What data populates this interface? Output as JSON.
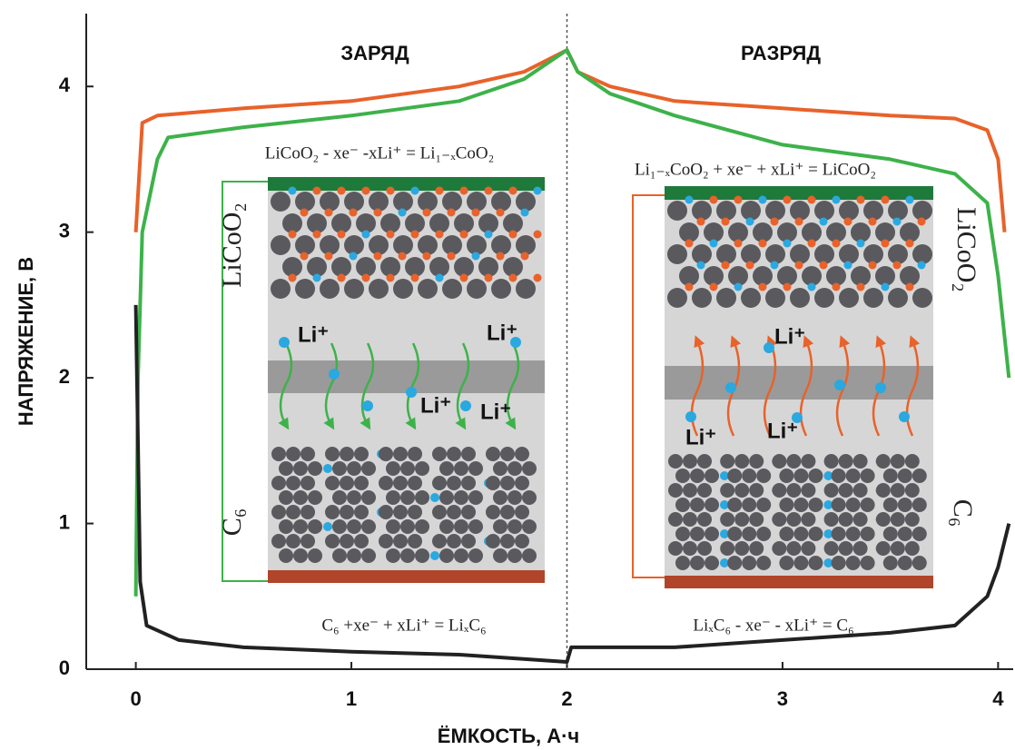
{
  "chart_data": {
    "type": "line",
    "xlabel": "ЁМКОСТЬ, А·ч",
    "ylabel": "НАПРЯЖЕНИЕ, В",
    "charge_label": "ЗАРЯД",
    "discharge_label": "РАЗРЯД",
    "xlim": [
      -0.23,
      4.07
    ],
    "ylim": [
      0,
      4.5
    ],
    "xticks": [
      0,
      1,
      2,
      3,
      4
    ],
    "yticks": [
      0,
      1,
      2,
      3,
      4
    ],
    "series": [
      {
        "color": "#e8622a",
        "x": [
          0,
          0.03,
          0.1,
          0.5,
          1,
          1.5,
          1.8,
          2.0,
          2.05,
          2.2,
          2.5,
          3,
          3.5,
          3.8,
          3.95,
          4.0,
          4.03
        ],
        "values": [
          3.0,
          3.75,
          3.8,
          3.85,
          3.9,
          4.0,
          4.1,
          4.25,
          4.1,
          4.0,
          3.9,
          3.85,
          3.8,
          3.78,
          3.7,
          3.5,
          3.0
        ]
      },
      {
        "color": "#3db24a",
        "x": [
          0,
          0.01,
          0.03,
          0.1,
          0.15,
          0.5,
          1,
          1.5,
          1.8,
          2.0,
          2.05,
          2.2,
          2.5,
          3,
          3.5,
          3.8,
          3.95,
          4.0,
          4.05
        ],
        "values": [
          0.5,
          2.0,
          3.0,
          3.5,
          3.65,
          3.72,
          3.8,
          3.9,
          4.05,
          4.25,
          4.1,
          3.95,
          3.8,
          3.6,
          3.5,
          3.4,
          3.2,
          2.7,
          2.0
        ]
      },
      {
        "color": "#222222",
        "x": [
          0,
          0.02,
          0.05,
          0.2,
          0.5,
          1,
          1.5,
          2.0,
          2.02,
          2.2,
          2.5,
          3,
          3.5,
          3.8,
          3.95,
          4.0,
          4.05
        ],
        "values": [
          2.5,
          0.6,
          0.3,
          0.2,
          0.15,
          0.12,
          0.1,
          0.05,
          0.15,
          0.15,
          0.15,
          0.2,
          0.25,
          0.3,
          0.5,
          0.7,
          1.0
        ]
      }
    ],
    "insets": [
      {
        "reaction_top": "LiCoO₂ - xe⁻ -xLi⁺ = Li₁₋ₓCoO₂",
        "reaction_bottom": "C₆ +xe⁻ + xLi⁺ = LiₓC₆",
        "cathode_label": "LiCoO₂",
        "anode_label": "C₆",
        "ion_labels": [
          "Li⁺",
          "Li⁺",
          "Li⁺",
          "Li⁺"
        ]
      },
      {
        "reaction_top": "Li₁₋ₓCoO₂ + xe⁻ + xLi⁺ = LiCoO₂",
        "reaction_bottom": "LiₓC₆ - xe⁻ - xLi⁺ = C₆",
        "cathode_label": "LiCoO₂",
        "anode_label": "C₆",
        "ion_labels": [
          "Li⁺",
          "Li⁺",
          "Li⁺"
        ]
      }
    ]
  }
}
